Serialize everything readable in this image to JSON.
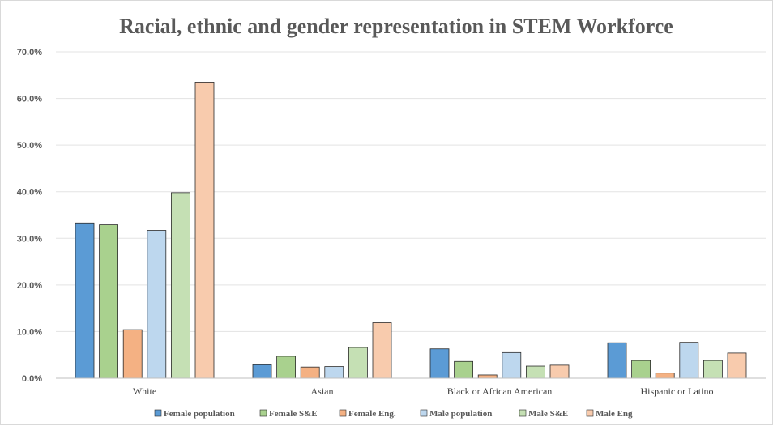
{
  "chart_data": {
    "type": "bar",
    "title": "Racial, ethnic and gender representation in STEM Workforce",
    "xlabel": "",
    "ylabel": "",
    "categories": [
      "White",
      "Asian",
      "Black or African American",
      "Hispanic or Latino"
    ],
    "ylim": [
      0,
      70
    ],
    "yticks": [
      "0.0%",
      "10.0%",
      "20.0%",
      "30.0%",
      "40.0%",
      "50.0%",
      "60.0%",
      "70.0%"
    ],
    "grid": true,
    "legend_position": "bottom",
    "series": [
      {
        "name": "Female population",
        "color": "#5b9bd5",
        "values": [
          33.3,
          2.9,
          6.3,
          7.6
        ]
      },
      {
        "name": "Female S&E",
        "color": "#a9d18e",
        "values": [
          32.9,
          4.7,
          3.6,
          3.8
        ]
      },
      {
        "name": "Female Eng.",
        "color": "#f4b183",
        "values": [
          10.4,
          2.4,
          0.7,
          1.1
        ]
      },
      {
        "name": "Male population",
        "color": "#bdd7ee",
        "values": [
          31.7,
          2.5,
          5.5,
          7.7
        ]
      },
      {
        "name": "Male S&E",
        "color": "#c5e0b4",
        "values": [
          39.8,
          6.6,
          2.6,
          3.8
        ]
      },
      {
        "name": "Male Eng",
        "color": "#f8cbad",
        "values": [
          63.5,
          11.9,
          2.8,
          5.4
        ]
      }
    ]
  }
}
